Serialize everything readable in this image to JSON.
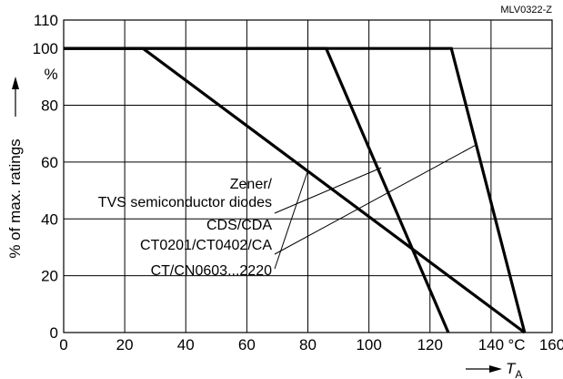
{
  "chart_data": {
    "type": "line",
    "figure_code": "MLV0322-Z",
    "xlabel": "T",
    "xlabel_sub": "A",
    "xunit": "°C",
    "ylabel": "% of max. ratings",
    "yunit": "%",
    "xlim": [
      0,
      160
    ],
    "ylim": [
      0,
      110
    ],
    "xticks": [
      0,
      20,
      40,
      60,
      80,
      100,
      120,
      140,
      160
    ],
    "yticks": [
      0,
      20,
      40,
      60,
      80,
      100,
      110
    ],
    "grid": true,
    "series": [
      {
        "name": "Zener/ TVS semiconductor diodes",
        "x": [
          0,
          86,
          126
        ],
        "y": [
          100,
          100,
          0
        ]
      },
      {
        "name": "CDS/CDA CT0201/CT0402/CA",
        "x": [
          0,
          127,
          151
        ],
        "y": [
          100,
          100,
          0
        ]
      },
      {
        "name": "CT/CN0603...2220",
        "x": [
          0,
          26,
          151
        ],
        "y": [
          100,
          100,
          0
        ]
      }
    ],
    "annotations": [
      {
        "lines": [
          "Zener/",
          "TVS semiconductor diodes"
        ],
        "points_to": [
          104,
          58
        ]
      },
      {
        "lines": [
          "CDS/CDA",
          "CT0201/CT0402/CA"
        ],
        "points_to": [
          135,
          66
        ]
      },
      {
        "lines": [
          "CT/CN0603...2220"
        ],
        "points_to": [
          80,
          57
        ]
      }
    ]
  }
}
